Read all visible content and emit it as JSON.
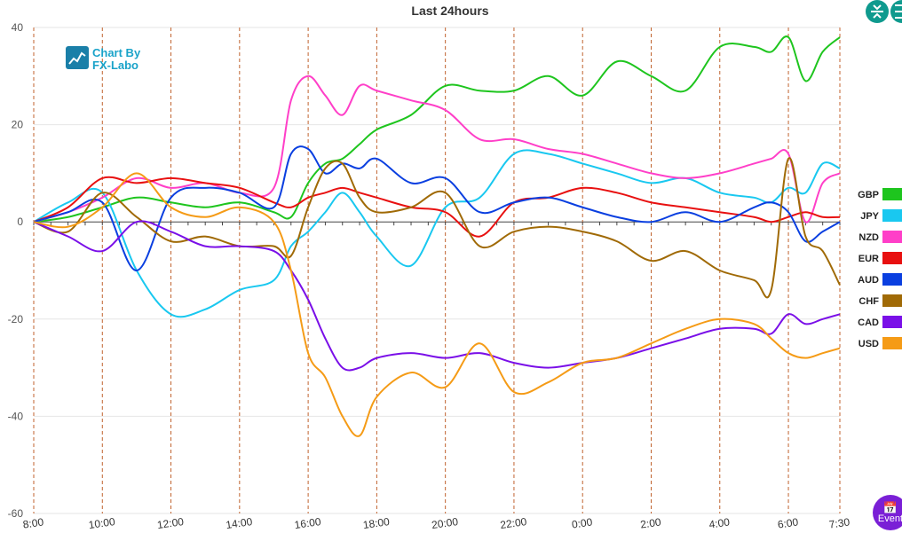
{
  "chart_data": {
    "type": "line",
    "title": "Last 24hours",
    "ylim": [
      -60,
      40
    ],
    "yticks": [
      40,
      20,
      0,
      -20,
      -40,
      -60
    ],
    "xticks": [
      "8:00",
      "10:00",
      "12:00",
      "14:00",
      "16:00",
      "18:00",
      "20:00",
      "22:00",
      "0:00",
      "2:00",
      "4:00",
      "6:00",
      "7:30"
    ],
    "x_hours": [
      0,
      1,
      2,
      3,
      4,
      5,
      6,
      7,
      7.5,
      8,
      8.5,
      9,
      9.5,
      10,
      11,
      12,
      13,
      14,
      15,
      16,
      17,
      18,
      19,
      20,
      21,
      21.5,
      22,
      22.5,
      23,
      23.5
    ],
    "series": [
      {
        "name": "GBP",
        "color": "#1ec51e",
        "values": [
          0,
          1,
          3,
          5,
          4,
          3,
          4,
          2,
          1,
          8,
          12,
          13,
          16,
          19,
          22,
          28,
          27,
          27,
          30,
          26,
          33,
          30,
          27,
          36,
          36,
          35,
          38,
          29,
          35,
          38
        ]
      },
      {
        "name": "JPY",
        "color": "#19c8f0",
        "values": [
          0,
          4,
          6,
          -10,
          -19,
          -18,
          -14,
          -12,
          -5,
          -2,
          2,
          6,
          2,
          -3,
          -9,
          3,
          5,
          14,
          14,
          12,
          10,
          8,
          9,
          6,
          5,
          4,
          7,
          6,
          12,
          11
        ]
      },
      {
        "name": "NZD",
        "color": "#ff3fc8",
        "values": [
          0,
          2,
          5,
          9,
          7,
          8,
          6,
          7,
          25,
          30,
          26,
          22,
          28,
          27,
          25,
          23,
          17,
          17,
          15,
          14,
          12,
          10,
          9,
          10,
          12,
          13,
          14,
          0,
          8,
          10
        ]
      },
      {
        "name": "EUR",
        "color": "#e81010",
        "values": [
          0,
          3,
          9,
          8,
          9,
          8,
          7,
          4,
          3,
          5,
          6,
          7,
          6,
          5,
          3,
          2,
          -3,
          4,
          5,
          7,
          6,
          4,
          3,
          2,
          1,
          0,
          1,
          2,
          1,
          1
        ]
      },
      {
        "name": "AUD",
        "color": "#0a3fe0",
        "values": [
          0,
          2,
          4,
          -10,
          5,
          7,
          6,
          3,
          14,
          15,
          10,
          12,
          11,
          13,
          8,
          9,
          2,
          4,
          5,
          3,
          1,
          0,
          2,
          0,
          3,
          4,
          2,
          -4,
          -2,
          0
        ]
      },
      {
        "name": "CHF",
        "color": "#a06a06",
        "values": [
          0,
          -2,
          6,
          1,
          -4,
          -3,
          -5,
          -5,
          -7,
          3,
          11,
          12,
          5,
          2,
          3,
          6,
          -5,
          -2,
          -1,
          -2,
          -4,
          -8,
          -6,
          -10,
          -12,
          -14,
          13,
          -3,
          -6,
          -13
        ]
      },
      {
        "name": "CAD",
        "color": "#7a0fe8",
        "values": [
          0,
          -3,
          -6,
          0,
          -2,
          -5,
          -5,
          -6,
          -10,
          -16,
          -24,
          -30,
          -30,
          -28,
          -27,
          -28,
          -27,
          -29,
          -30,
          -29,
          -28,
          -26,
          -24,
          -22,
          -22,
          -23,
          -19,
          -21,
          -20,
          -19
        ]
      },
      {
        "name": "USD",
        "color": "#f59b16",
        "values": [
          0,
          -1,
          3,
          10,
          3,
          1,
          3,
          0,
          -10,
          -27,
          -32,
          -40,
          -44,
          -36,
          -31,
          -34,
          -25,
          -35,
          -33,
          -29,
          -28,
          -25,
          -22,
          -20,
          -21,
          -24,
          -27,
          -28,
          -27,
          -26
        ]
      }
    ]
  },
  "logo": {
    "line1": "Chart By",
    "line2": "FX-Labo"
  },
  "toolbar": {
    "compress_icon": "compress-icon",
    "expand_icon": "expand-icon"
  },
  "events_button": {
    "label": "Event",
    "icon": "calendar-icon"
  }
}
